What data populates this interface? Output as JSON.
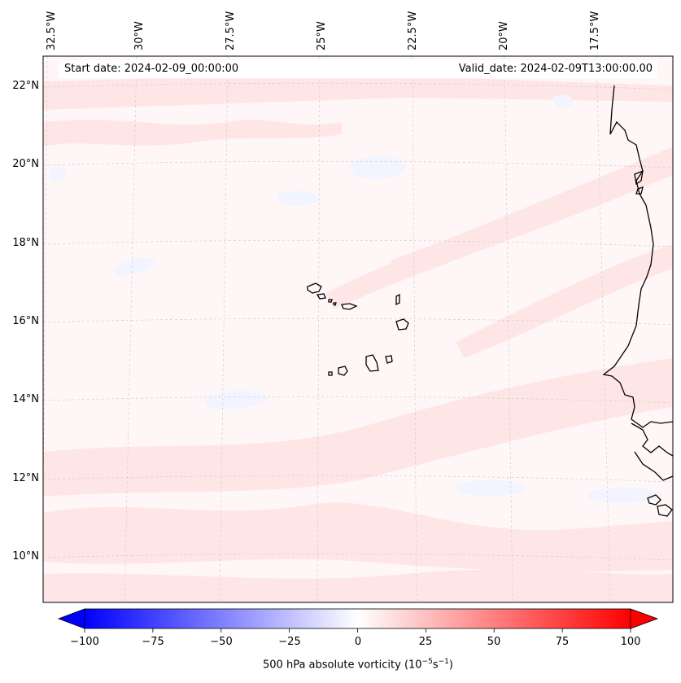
{
  "map": {
    "variable": "500 hPa absolute vorticity",
    "start_date_text": "Start date: 2024-02-09_00:00:00",
    "valid_date_text": "Valid_date: 2024-02-09T13:00:00.00",
    "lon_labels": [
      "32.5°W",
      "30°W",
      "27.5°W",
      "25°W",
      "22.5°W",
      "20°W",
      "17.5°W"
    ],
    "lat_labels": [
      "22°N",
      "20°N",
      "18°N",
      "16°N",
      "14°N",
      "12°N",
      "10°N"
    ],
    "colors": {
      "field_background": "#fff7f7",
      "positive_light": "#ffe6e6",
      "negative_light": "#f2f5ff",
      "coastline": "#000000",
      "gridline": "#c8c8c8"
    }
  },
  "colorbar": {
    "min": -100,
    "max": 100,
    "ticks": [
      "−100",
      "−75",
      "−50",
      "−25",
      "0",
      "25",
      "50",
      "75",
      "100"
    ],
    "label_prefix": "500 hPa absolute vorticity (10",
    "label_exp1": "−5",
    "label_mid": "s",
    "label_exp2": "−1",
    "label_suffix": ")",
    "colors": {
      "low": "#0000ff",
      "mid": "#ffffff",
      "high": "#ff0000"
    }
  }
}
